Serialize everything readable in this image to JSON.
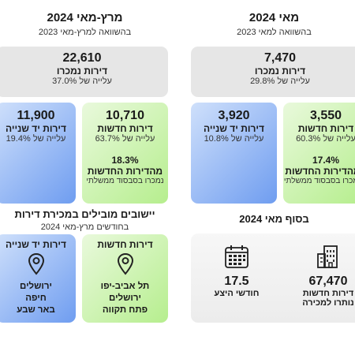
{
  "left": {
    "title": "מרץ-מאי 2024",
    "subtitle": "בהשוואה למרץ-מאי 2023",
    "total": {
      "value": "22,610",
      "label": "דירות נמכרו",
      "change": "עלייה של 37.0%"
    },
    "new": {
      "value": "10,710",
      "label": "דירות חדשות",
      "change": "עלייה של 63.7%",
      "share": "18.3%",
      "share_label": "מהדירות החדשות",
      "share_note": "נמכרו בסבסוד ממשלתי"
    },
    "secondhand": {
      "value": "11,900",
      "label": "דירות יד שנייה",
      "change": "עלייה של 19.4%"
    },
    "leading": {
      "title": "יישובים מובילים במכירת דירות",
      "subtitle": "בחודשים מרץ-מאי 2024",
      "new_title": "דירות חדשות",
      "new_cities": [
        "תל אביב-יפו",
        "ירושלים",
        "פתח תקווה"
      ],
      "second_title": "דירות יד שנייה",
      "second_cities": [
        "ירושלים",
        "חיפה",
        "באר שבע"
      ],
      "icon": "map-pin-icon"
    }
  },
  "right": {
    "title": "מאי 2024",
    "subtitle": "בהשוואה למאי 2023",
    "total": {
      "value": "7,470",
      "label": "דירות נמכרו",
      "change": "עלייה של 29.8%"
    },
    "new": {
      "value": "3,550",
      "label": "דירות חדשות",
      "change": "עלייה של 60.3%",
      "share": "17.4%",
      "share_label": "מהדירות החדשות",
      "share_note": "נמכרו בסבסוד ממשלתי"
    },
    "secondhand": {
      "value": "3,920",
      "label": "דירות יד שנייה",
      "change": "עלייה של 10.8%"
    },
    "end": {
      "title": "בסוף מאי 2024",
      "unsold": {
        "value": "67,470",
        "label1": "דירות חדשות",
        "label2": "נותרו למכירה",
        "icon": "building-icon"
      },
      "supply": {
        "value": "17.5",
        "label": "חודשי היצע",
        "icon": "calendar-icon"
      }
    }
  },
  "colors": {
    "gray": "#e6e6e6",
    "green": "#b6ee8e",
    "blue": "#6f9df0"
  }
}
